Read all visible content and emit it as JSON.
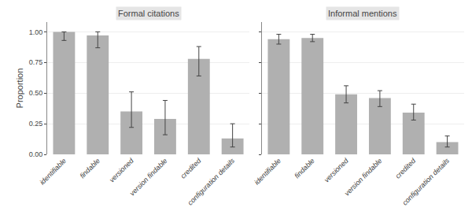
{
  "chart_data": [
    {
      "type": "bar",
      "title": "Formal citations",
      "categories": [
        "identifiable",
        "findable",
        "versioned",
        "version findable",
        "credited",
        "configuration details"
      ],
      "values": [
        1.0,
        0.97,
        0.35,
        0.29,
        0.78,
        0.13
      ],
      "err_low": [
        0.07,
        0.1,
        0.13,
        0.13,
        0.14,
        0.07
      ],
      "err_high": [
        0.0,
        0.03,
        0.16,
        0.15,
        0.1,
        0.12
      ],
      "ylabel": "Proportion",
      "ylim": [
        0.0,
        1.08
      ],
      "yticks": [
        {
          "value": 0.0,
          "label": "0.00"
        },
        {
          "value": 0.25,
          "label": "0.25"
        },
        {
          "value": 0.5,
          "label": "0.50"
        },
        {
          "value": 0.75,
          "label": "0.75"
        },
        {
          "value": 1.0,
          "label": "1.00"
        }
      ],
      "grid": true,
      "color": "#b0b0b0"
    },
    {
      "type": "bar",
      "title": "Informal mentions",
      "categories": [
        "identifiable",
        "findable",
        "versioned",
        "version findable",
        "credited",
        "configuration details"
      ],
      "values": [
        0.94,
        0.95,
        0.49,
        0.46,
        0.34,
        0.1
      ],
      "err_low": [
        0.04,
        0.03,
        0.07,
        0.07,
        0.06,
        0.04
      ],
      "err_high": [
        0.04,
        0.03,
        0.07,
        0.06,
        0.07,
        0.05
      ],
      "ylim": [
        0.0,
        1.08
      ],
      "yticks": [
        {
          "value": 0.0,
          "label": "0.00"
        },
        {
          "value": 0.25,
          "label": "0.25"
        },
        {
          "value": 0.5,
          "label": "0.50"
        },
        {
          "value": 0.75,
          "label": "0.75"
        },
        {
          "value": 1.0,
          "label": "1.00"
        }
      ],
      "grid": true,
      "tick_labels": "x",
      "color": "#b0b0b0"
    }
  ]
}
